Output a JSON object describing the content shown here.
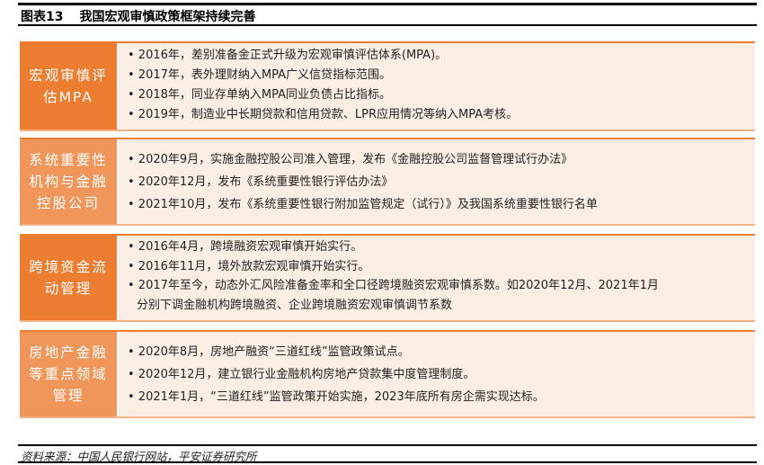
{
  "header": {
    "figure_no": "图表13",
    "title": "我国宏观审慎政策框架持续完善"
  },
  "colors": {
    "label_dark": "#ED7D31",
    "label_light": "#F0965A",
    "content_bg": "#FBEEE5"
  },
  "sections": [
    {
      "label": "宏观审慎评估MPA",
      "items": [
        "• 2016年，差别准备金正式升级为宏观审慎评估体系(MPA)。",
        "• 2017年，表外理财纳入MPA广义信贷指标范围。",
        "• 2018年，同业存单纳入MPA同业负债占比指标。",
        "• 2019年，制造业中长期贷款和信用贷款、LPR应用情况等纳入MPA考核。"
      ]
    },
    {
      "label": "系统重要性机构与金融控股公司",
      "items": [
        "• 2020年9月，实施金融控股公司准入管理，发布《金融控股公司监督管理试行办法》",
        "• 2020年12月，发布《系统重要性银行评估办法》",
        "• 2021年10月，发布《系统重要性银行附加监管规定（试行）》及我国系统重要性银行名单"
      ]
    },
    {
      "label": "跨境资金流动管理",
      "items": [
        "• 2016年4月，跨境融资宏观审慎开始实行。",
        "• 2016年11月，境外放款宏观审慎开始实行。",
        "• 2017年至今，动态外汇风险准备金率和全口径跨境融资宏观审慎系数。如2020年12月、2021年1月",
        "分别下调金融机构跨境融资、企业跨境融资宏观审慎调节系数"
      ]
    },
    {
      "label": "房地产金融等重点领域管理",
      "items": [
        "• 2020年8月，房地产融资“三道红线”监管政策试点。",
        "• 2020年12月，建立银行业金融机构房地产贷款集中度管理制度。",
        "• 2021年1月，“三道红线”监管政策开始实施，2023年底所有房企需实现达标。"
      ]
    }
  ],
  "footer": {
    "source": "资料来源：中国人民银行网站，平安证券研究所"
  }
}
